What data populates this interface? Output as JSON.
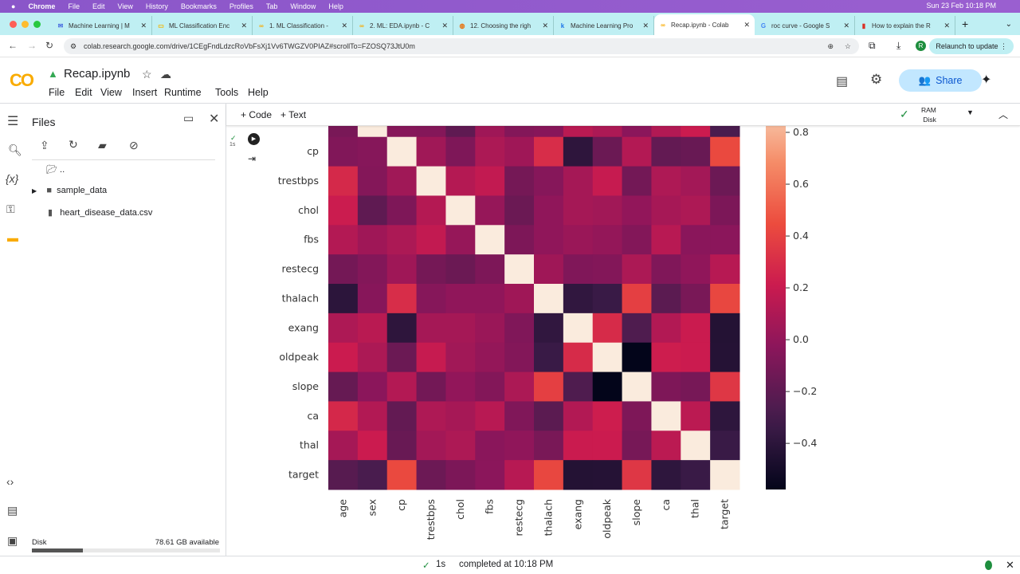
{
  "mac_menubar": {
    "app": "Chrome",
    "items": [
      "File",
      "Edit",
      "View",
      "History",
      "Bookmarks",
      "Profiles",
      "Tab",
      "Window",
      "Help"
    ],
    "clock": "Sun 23 Feb 10:18 PM"
  },
  "browser": {
    "tabs": [
      {
        "title": "Machine Learning | M",
        "icon": "mail-icon",
        "color": "#4a6ee0"
      },
      {
        "title": "ML Classification Enc",
        "icon": "slides-icon",
        "color": "#f4b400"
      },
      {
        "title": "1. ML Classification -",
        "icon": "colab-icon",
        "color": "#f9ab00"
      },
      {
        "title": "2. ML: EDA.ipynb - C",
        "icon": "colab-icon",
        "color": "#f9ab00"
      },
      {
        "title": "12. Choosing the righ",
        "icon": "globe-icon",
        "color": "#e8710a"
      },
      {
        "title": "Machine Learning Pro",
        "icon": "k-icon",
        "color": "#1a73e8"
      },
      {
        "title": "Recap.ipynb - Colab",
        "icon": "colab-icon",
        "color": "#f9ab00",
        "active": true
      },
      {
        "title": "roc curve - Google S",
        "icon": "google-icon",
        "color": "#4285f4"
      },
      {
        "title": "How to explain the R",
        "icon": "bar-chart-icon",
        "color": "#d93025"
      }
    ],
    "url": "colab.research.google.com/drive/1CEgFndLdzcRoVbFsXj1Vv6TWGZV0PIAZ#scrollTo=FZOSQ73JtU0m",
    "relaunch": "Relaunch to update",
    "profile_initial": "R"
  },
  "colab": {
    "logo": "CO",
    "title": "Recap.ipynb",
    "menu": [
      "File",
      "Edit",
      "View",
      "Insert",
      "Runtime",
      "Tools",
      "Help"
    ],
    "share": "Share",
    "toolbar": {
      "add_code": "+ Code",
      "add_text": "+ Text",
      "ram": "RAM",
      "disk": "Disk"
    },
    "cell": {
      "exec_time": "1s"
    }
  },
  "files_panel": {
    "title": "Files",
    "items": [
      {
        "name": "..",
        "type": "folder-open"
      },
      {
        "name": "sample_data",
        "type": "folder"
      },
      {
        "name": "heart_disease_data.csv",
        "type": "file"
      }
    ],
    "disk_label": "Disk",
    "disk_available": "78.61 GB available",
    "disk_used_fraction": 0.27
  },
  "statusbar": {
    "check": "✓",
    "time": "1s",
    "message": "completed at 10:18 PM"
  },
  "chart_data": {
    "type": "heatmap",
    "labels": [
      "age",
      "sex",
      "cp",
      "trestbps",
      "chol",
      "fbs",
      "restecg",
      "thalach",
      "exang",
      "oldpeak",
      "slope",
      "ca",
      "thal",
      "target"
    ],
    "colormap": "rocket",
    "vmin": -0.578,
    "vmax": 1.0,
    "colorbar_ticks": [
      -0.4,
      -0.2,
      0.0,
      0.2,
      0.4,
      0.6,
      0.8
    ],
    "colorbar_tick_labels": [
      "−0.4",
      "−0.2",
      "0.0",
      "0.2",
      "0.4",
      "0.6",
      "0.8"
    ],
    "upper_triangle": [
      [
        -0.098,
        -0.069,
        0.279,
        0.214,
        0.121,
        -0.116,
        -0.399,
        0.097,
        0.21,
        -0.169,
        0.276,
        0.068,
        -0.225
      ],
      [
        -0.049,
        -0.057,
        -0.198,
        0.045,
        -0.058,
        -0.044,
        0.142,
        0.096,
        -0.031,
        0.118,
        0.21,
        -0.281
      ],
      [
        0.048,
        -0.077,
        0.094,
        0.044,
        0.296,
        -0.394,
        -0.149,
        0.12,
        -0.181,
        -0.162,
        0.434
      ],
      [
        0.123,
        0.178,
        -0.114,
        -0.047,
        0.068,
        0.193,
        -0.121,
        0.101,
        0.062,
        -0.145
      ],
      [
        0.013,
        -0.151,
        -0.01,
        0.067,
        0.054,
        -0.004,
        0.071,
        0.099,
        -0.085
      ],
      [
        -0.084,
        -0.009,
        0.026,
        0.006,
        -0.06,
        0.138,
        -0.032,
        -0.028
      ],
      [
        0.044,
        -0.071,
        -0.059,
        0.093,
        -0.072,
        -0.012,
        0.137
      ],
      [
        -0.379,
        -0.344,
        0.387,
        -0.213,
        -0.096,
        0.422
      ],
      [
        0.288,
        -0.258,
        0.116,
        0.207,
        -0.437
      ],
      [
        -0.578,
        0.223,
        0.21,
        -0.431
      ],
      [
        -0.08,
        -0.105,
        0.346
      ],
      [
        0.152,
        -0.392
      ],
      [
        -0.344
      ]
    ]
  }
}
